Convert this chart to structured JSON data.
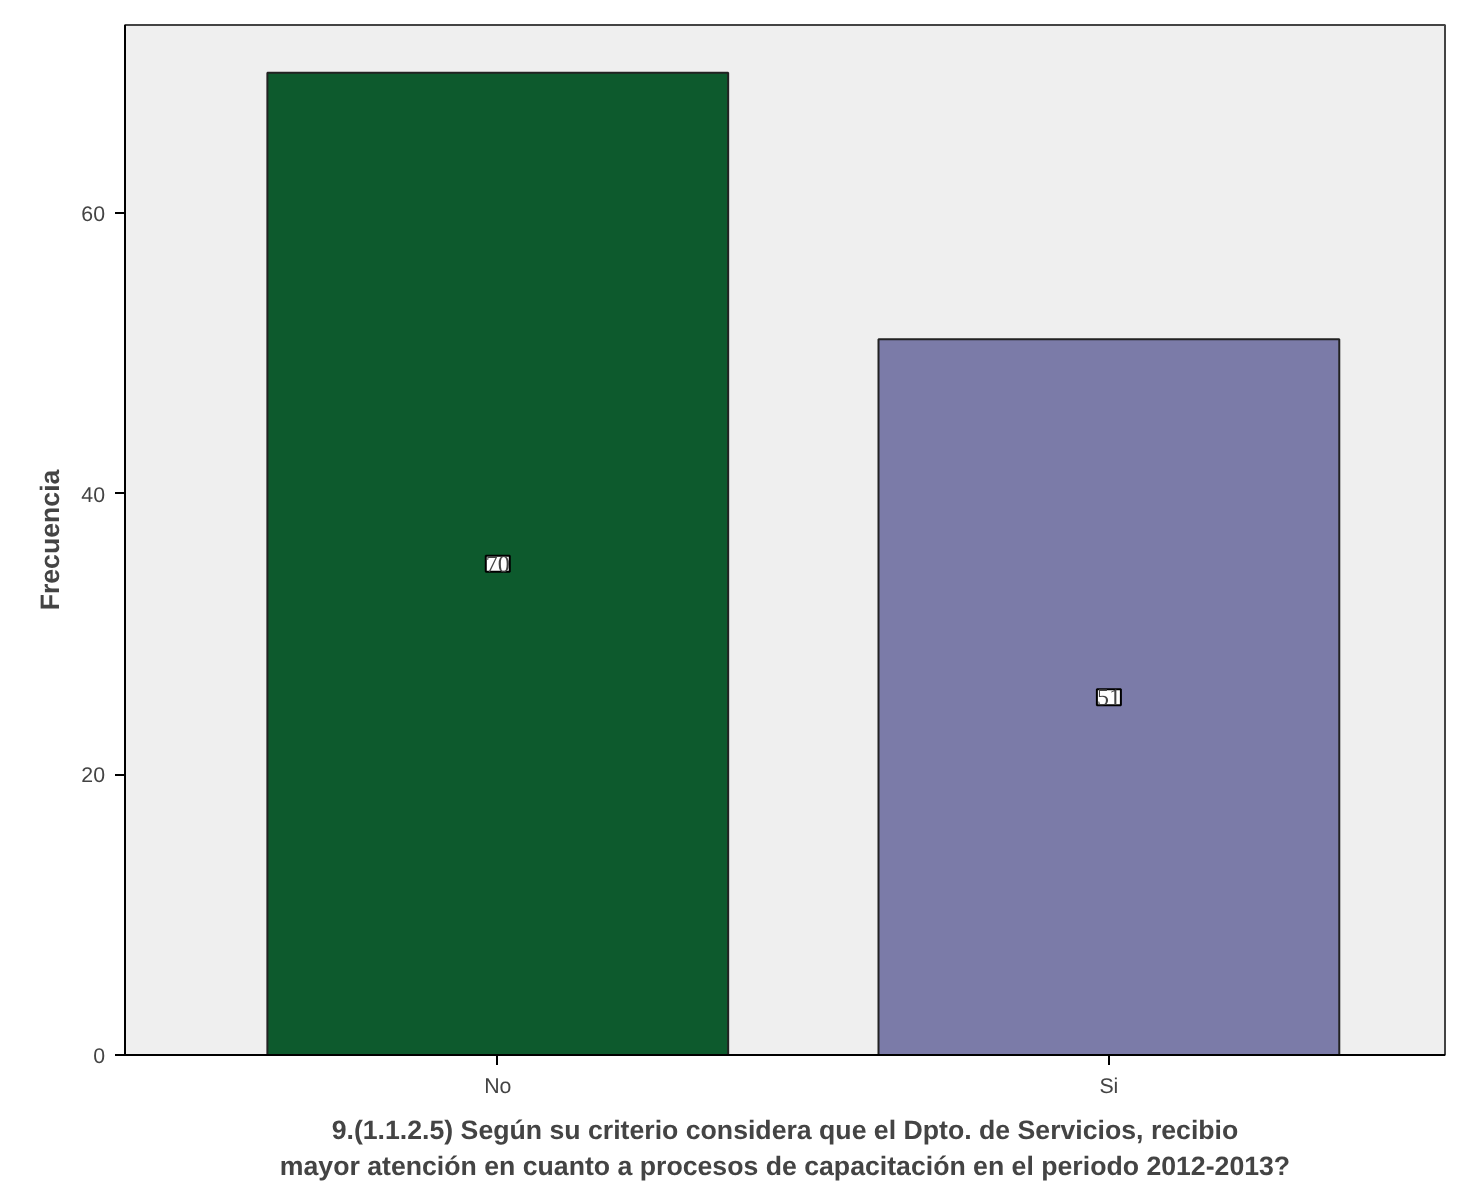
{
  "chart_data": {
    "type": "bar",
    "xlabel": "9.(1.1.2.5) Según su criterio considera que el Dpto. de Servicios, recibio mayor atención en cuanto a procesos de capacitación en el periodo 2012-2013?",
    "ylabel": "Frecuencia",
    "categories": [
      "No",
      "Si"
    ],
    "values": [
      70,
      51
    ],
    "colors": [
      "#0d5a2d",
      "#7b7ba8"
    ],
    "ylim": [
      0,
      73.4
    ],
    "yticks": [
      0,
      20,
      40,
      60
    ],
    "grid": false,
    "data_labels": true
  }
}
